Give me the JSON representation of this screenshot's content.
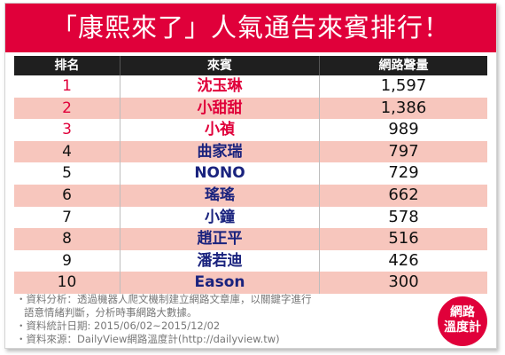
{
  "title": "「康熙來了」人氣通告來賓排行！",
  "chart_data": {
    "type": "table",
    "columns": [
      "排名",
      "來賓",
      "網路聲量"
    ],
    "rows": [
      {
        "rank": "1",
        "name": "沈玉琳",
        "value": "1,597"
      },
      {
        "rank": "2",
        "name": "小甜甜",
        "value": "1,386"
      },
      {
        "rank": "3",
        "name": "小禎",
        "value": "989"
      },
      {
        "rank": "4",
        "name": "曲家瑞",
        "value": "797"
      },
      {
        "rank": "5",
        "name": "NONO",
        "value": "729"
      },
      {
        "rank": "6",
        "name": "瑤瑤",
        "value": "662"
      },
      {
        "rank": "7",
        "name": "小鐘",
        "value": "578"
      },
      {
        "rank": "8",
        "name": "趙正平",
        "value": "516"
      },
      {
        "rank": "9",
        "name": "潘若迪",
        "value": "426"
      },
      {
        "rank": "10",
        "name": "Eason",
        "value": "300"
      }
    ]
  },
  "footer": {
    "line1": "・資料分析：透過機器人爬文機制建立網路文章庫，以關鍵字進行",
    "line2": "語意情緒判斷，分析時事網路大數據。",
    "line3": "・資料統計日期: 2015/06/02~2015/12/02",
    "line4": "・資料來源：DailyView網路溫度計(http://dailyview.tw)"
  },
  "badge": {
    "line1": "網路",
    "line2": "溫度計"
  },
  "colors": {
    "accent": "#e0003a",
    "header": "#1f1f1f",
    "stripe": "#f7c6bd",
    "name": "#1a237e"
  }
}
